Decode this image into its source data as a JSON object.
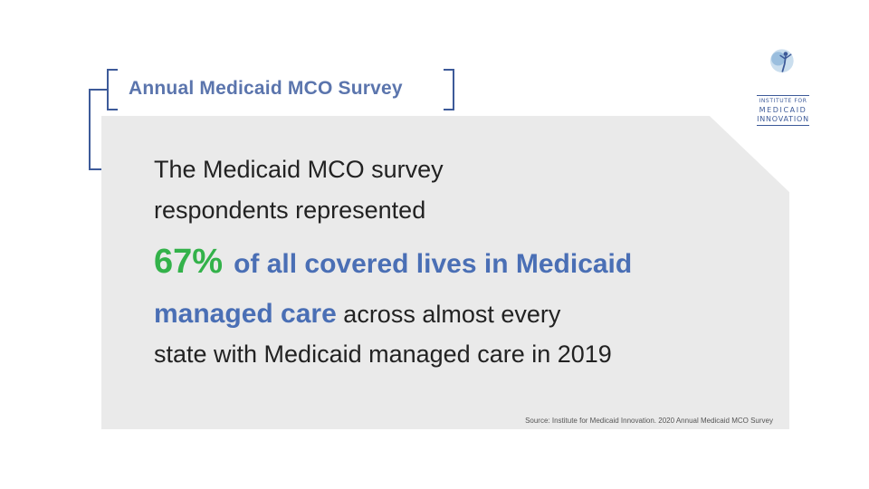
{
  "title": "Annual Medicaid MCO Survey",
  "body": {
    "line1": "The Medicaid MCO survey",
    "line2": "respondents represented",
    "percent": "67%",
    "line3_highlight": "of all covered lives in Medicaid",
    "line4_highlight": "managed care",
    "line4_rest": "across almost every",
    "line5": "state with Medicaid managed care in 2019"
  },
  "source": "Source: Institute for Medicaid Innovation. 2020 Annual Medicaid MCO Survey",
  "logo": {
    "line1": "INSTITUTE FOR",
    "line2": "MEDICAID",
    "line3": "INNOVATION",
    "icon": "figure-globe-icon"
  },
  "colors": {
    "accent_blue": "#4a6fb5",
    "green": "#33b24a",
    "card_bg": "#eaeaea"
  }
}
